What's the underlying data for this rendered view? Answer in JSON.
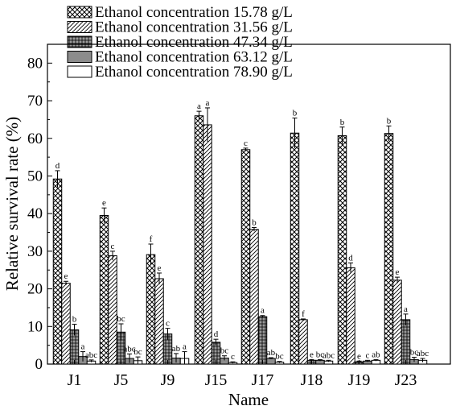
{
  "chart_data": {
    "type": "bar",
    "xlabel": "Name",
    "ylabel": "Relative survival rate (%)",
    "ylim": [
      0,
      85
    ],
    "yticks": [
      0,
      10,
      20,
      30,
      40,
      50,
      60,
      70,
      80
    ],
    "grid": false,
    "legend_position": "top",
    "categories": [
      "J1",
      "J5",
      "J9",
      "J15",
      "J17",
      "J18",
      "J19",
      "J23"
    ],
    "series": [
      {
        "name": "Ethanol concentration 15.78 g/L",
        "pattern": "crosshatch",
        "values": [
          49.2,
          39.5,
          29.1,
          66.0,
          57.0,
          61.4,
          60.7,
          61.3
        ],
        "errors": [
          2.2,
          2.0,
          2.8,
          1.2,
          0.4,
          4.0,
          2.3,
          2.0
        ],
        "letters": [
          "d",
          "e",
          "f",
          "a",
          "c",
          "b",
          "b",
          "b"
        ]
      },
      {
        "name": "Ethanol concentration 31.56 g/L",
        "pattern": "diagonal",
        "values": [
          21.5,
          28.8,
          22.7,
          63.6,
          35.8,
          11.8,
          25.6,
          22.3
        ],
        "errors": [
          0.5,
          1.2,
          1.5,
          4.5,
          0.5,
          0.2,
          1.3,
          0.8
        ],
        "letters": [
          "e",
          "c",
          "e",
          "a",
          "b",
          "f",
          "d",
          "e"
        ]
      },
      {
        "name": "Ethanol concentration 47.34 g/L",
        "pattern": "grid",
        "values": [
          9.1,
          8.5,
          8.0,
          5.8,
          12.6,
          1.0,
          0.6,
          11.8
        ],
        "errors": [
          1.5,
          2.2,
          1.5,
          0.8,
          0.3,
          0.2,
          0.2,
          1.5
        ],
        "letters": [
          "b",
          "bc",
          "c",
          "d",
          "a",
          "e",
          "e",
          "a"
        ]
      },
      {
        "name": "Ethanol concentration 63.12 g/L",
        "pattern": "solid",
        "values": [
          2.0,
          1.5,
          1.6,
          1.6,
          1.5,
          1.0,
          0.8,
          1.2
        ],
        "errors": [
          1.3,
          1.2,
          1.2,
          0.6,
          0.2,
          0.2,
          0.2,
          0.6
        ],
        "letters": [
          "a",
          "abc",
          "ab",
          "bc",
          "ab",
          "bc",
          "c",
          "bc"
        ]
      },
      {
        "name": "Ethanol concentration 78.90 g/L",
        "pattern": "none",
        "values": [
          0.8,
          0.9,
          1.5,
          0.4,
          0.5,
          0.8,
          1.0,
          1.0
        ],
        "errors": [
          0.3,
          1.0,
          1.8,
          0.2,
          0.2,
          0.2,
          0.2,
          0.5
        ],
        "letters": [
          "abc",
          "bc",
          "a",
          "c",
          "bc",
          "abc",
          "ab",
          "abc"
        ]
      }
    ]
  },
  "colors": {
    "stroke": "#000000",
    "background": "#ffffff",
    "solid_fill": "#8c8c8c",
    "pattern_fill": "#ffffff"
  }
}
